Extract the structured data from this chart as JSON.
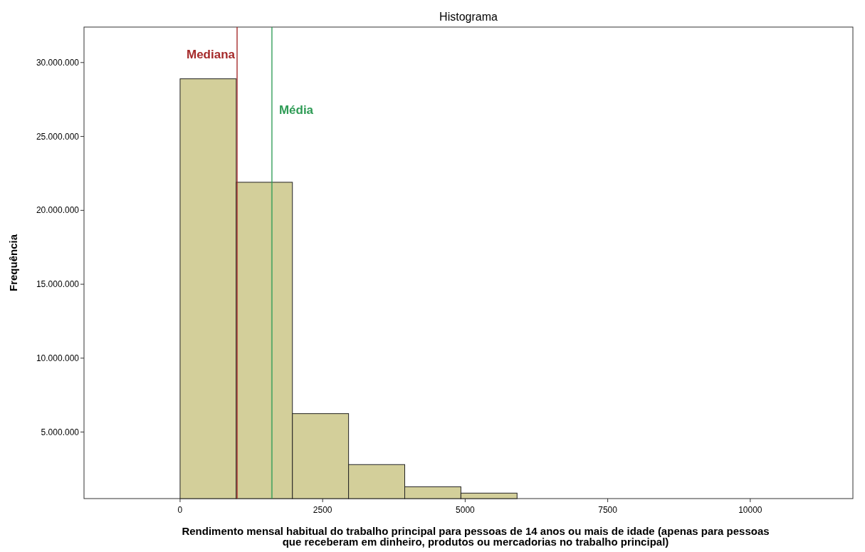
{
  "chart_data": {
    "type": "histogram",
    "title": "Histograma",
    "xlabel": "Rendimento mensal habitual do trabalho principal para pessoas de 14 anos ou mais de idade (apenas para pessoas que receberam em dinheiro, produtos ou mercadorias no trabalho principal)",
    "ylabel": "Frequência",
    "bins": [
      0,
      985,
      1970,
      2955,
      3940,
      4925,
      5910
    ],
    "values": [
      28900000,
      21900000,
      6250000,
      2800000,
      1300000,
      870000
    ],
    "color": "#d3cf9a",
    "xlim": [
      -1685,
      11800
    ],
    "ylim": [
      500000,
      32400000
    ],
    "xticks": [
      0,
      2500,
      5000,
      7500,
      10000
    ],
    "yticks": [
      {
        "value": 5000000,
        "label": "5.000.000"
      },
      {
        "value": 10000000,
        "label": "10.000.000"
      },
      {
        "value": 15000000,
        "label": "15.000.000"
      },
      {
        "value": 20000000,
        "label": "20.000.000"
      },
      {
        "value": 25000000,
        "label": "25.000.000"
      },
      {
        "value": 30000000,
        "label": "30.000.000"
      }
    ],
    "ref_lines": [
      {
        "axis": "x",
        "value": 1000,
        "label": "Mediana",
        "color": "#a52a2a"
      },
      {
        "axis": "x",
        "value": 1610,
        "label": "Média",
        "color": "#2e9b55"
      }
    ],
    "grid": false
  }
}
